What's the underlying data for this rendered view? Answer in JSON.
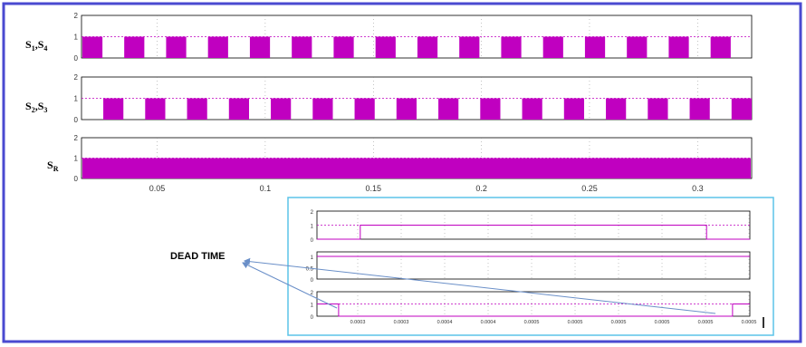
{
  "colors": {
    "frame": "#4a4ad0",
    "inset_frame": "#5bc3e8",
    "pulse": "#c000c0",
    "axis": "#000000",
    "grid": "#888888",
    "arrow": "#6a8fc8"
  },
  "chart_data": [
    {
      "type": "step",
      "panel": "main-top",
      "signal_label": "S1,S4",
      "signal_main": "S",
      "signal_sub": "1",
      "signal_mid": ",S",
      "signal_sub2": "4",
      "ylim": [
        0,
        2
      ],
      "yticks": [
        "2",
        "1",
        "0"
      ],
      "pulse_count": 16,
      "pulse_phase": 0
    },
    {
      "type": "step",
      "panel": "main-middle",
      "signal_label": "S2,S3",
      "signal_main": "S",
      "signal_sub": "2",
      "signal_mid": ",S",
      "signal_sub2": "3",
      "ylim": [
        0,
        2
      ],
      "yticks": [
        "2",
        "1",
        "0"
      ],
      "pulse_count": 16,
      "pulse_phase": 0.5
    },
    {
      "type": "step",
      "panel": "main-bottom",
      "signal_label": "SR",
      "signal_main": "S",
      "signal_sub": "R",
      "ylim": [
        0,
        2
      ],
      "yticks": [
        "2",
        "1",
        "0"
      ],
      "constant_value": 1,
      "xlim": [
        0.015,
        0.325
      ],
      "xticks": [
        "0.05",
        "0.1",
        "0.15",
        "0.2",
        "0.25",
        "0.3"
      ],
      "xtick_values": [
        0.05,
        0.1,
        0.15,
        0.2,
        0.25,
        0.3
      ]
    },
    {
      "type": "step",
      "panel": "inset",
      "ylim": [
        0,
        2
      ],
      "top_yticks": [
        "2",
        "1",
        "0"
      ],
      "mid_yticks": [
        "1",
        "0.5",
        "0"
      ],
      "bottom_yticks": [
        "2",
        "1",
        "0"
      ],
      "xticks": [
        "0.0003",
        "0.0003",
        "0.0004",
        "0.0004",
        "0.0005",
        "0.0005",
        "0.0005",
        "0.0005",
        "0.0005",
        "0.0005"
      ],
      "top_pulse": [
        0.1,
        0.9
      ],
      "bottom_pulses": [
        [
          0,
          0.05
        ],
        [
          0.96,
          1.0
        ]
      ],
      "mid_constant": 1
    }
  ],
  "annotation": {
    "text": "DEAD TIME"
  }
}
